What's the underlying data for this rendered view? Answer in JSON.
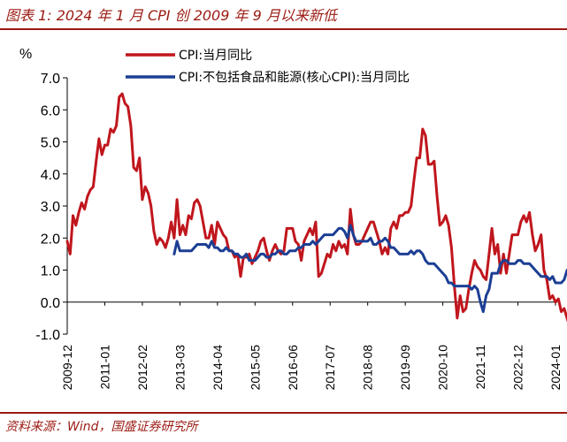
{
  "figure": {
    "title": "图表 1:  2024 年 1 月 CPI 创 2009 年 9 月以来新低",
    "source": "资料来源：Wind，国盛证券研究所"
  },
  "chart_data": {
    "type": "line",
    "unit_label": "%",
    "ylim": [
      -1.0,
      7.0
    ],
    "yticks": [
      "7.0",
      "6.0",
      "5.0",
      "4.0",
      "3.0",
      "2.0",
      "1.0",
      "0.0",
      "-1.0"
    ],
    "xticks": [
      "2009-12",
      "2011-01",
      "2012-02",
      "2013-03",
      "2014-04",
      "2015-05",
      "2016-06",
      "2017-07",
      "2018-08",
      "2019-09",
      "2020-10",
      "2021-11",
      "2022-12",
      "2024-01"
    ],
    "x_start": "2009-12",
    "x_end": "2024-01",
    "grid": false,
    "legend_position": "top-center",
    "series": [
      {
        "name": "CPI:当月同比",
        "color": "#c0161d",
        "start": "2009-12",
        "values": [
          1.9,
          1.5,
          2.7,
          2.4,
          2.8,
          3.1,
          2.9,
          3.3,
          3.5,
          3.6,
          4.4,
          5.1,
          4.6,
          4.9,
          4.9,
          5.4,
          5.3,
          5.5,
          6.4,
          6.5,
          6.2,
          6.1,
          5.5,
          4.2,
          4.1,
          4.5,
          3.2,
          3.6,
          3.4,
          3.0,
          2.2,
          1.8,
          2.0,
          1.9,
          1.7,
          2.0,
          2.5,
          2.0,
          3.2,
          2.1,
          2.4,
          2.1,
          2.7,
          2.6,
          3.1,
          3.2,
          3.0,
          2.5,
          2.0,
          2.0,
          2.4,
          1.8,
          2.5,
          2.3,
          2.1,
          2.0,
          1.6,
          1.6,
          1.4,
          1.5,
          0.8,
          1.4,
          1.4,
          1.5,
          1.2,
          1.4,
          1.6,
          1.9,
          2.0,
          1.6,
          1.3,
          1.6,
          1.8,
          1.6,
          1.5,
          1.6,
          2.3,
          2.3,
          2.3,
          1.9,
          1.8,
          1.3,
          1.9,
          2.1,
          2.3,
          2.1,
          2.5,
          0.8,
          0.9,
          1.2,
          1.5,
          1.4,
          1.8,
          1.6,
          1.9,
          1.7,
          1.8,
          1.5,
          2.9,
          2.1,
          1.8,
          1.8,
          1.9,
          2.1,
          2.3,
          2.5,
          2.5,
          2.2,
          1.9,
          1.5,
          1.7,
          1.5,
          2.3,
          2.5,
          2.3,
          2.7,
          2.7,
          2.8,
          2.8,
          3.0,
          3.8,
          4.5,
          4.5,
          5.4,
          5.2,
          4.3,
          4.3,
          4.4,
          3.3,
          2.4,
          2.5,
          2.7,
          2.4,
          1.7,
          0.5,
          -0.5,
          0.2,
          -0.3,
          -0.2,
          0.4,
          0.9,
          1.3,
          1.1,
          1.0,
          0.8,
          0.7,
          1.5,
          2.3,
          1.5,
          1.8,
          0.9,
          1.5,
          0.9,
          1.5,
          2.1,
          2.1,
          2.1,
          2.5,
          2.7,
          2.5,
          2.8,
          2.1,
          1.6,
          1.8,
          2.1,
          1.0,
          0.7,
          0.1,
          0.2,
          0.0,
          0.1,
          -0.3,
          -0.2,
          -0.5,
          -0.8
        ]
      },
      {
        "name": "CPI:不包括食品和能源(核心CPI):当月同比",
        "color": "#1c3f94",
        "start": "2013-01",
        "values": [
          1.5,
          1.9,
          1.6,
          1.6,
          1.6,
          1.6,
          1.6,
          1.7,
          1.8,
          1.8,
          1.8,
          1.8,
          1.7,
          1.9,
          1.7,
          1.7,
          1.6,
          1.6,
          1.7,
          1.6,
          1.6,
          1.5,
          1.5,
          1.4,
          1.4,
          1.5,
          1.3,
          1.3,
          1.3,
          1.4,
          1.5,
          1.5,
          1.4,
          1.4,
          1.5,
          1.5,
          1.6,
          1.6,
          1.5,
          1.5,
          1.6,
          1.6,
          1.6,
          1.7,
          1.7,
          1.8,
          1.8,
          1.8,
          1.9,
          1.8,
          1.9,
          2.0,
          2.1,
          2.1,
          2.1,
          2.1,
          2.2,
          2.3,
          2.3,
          2.2,
          2.0,
          2.4,
          2.1,
          1.9,
          1.9,
          1.9,
          1.9,
          1.9,
          2.0,
          1.8,
          1.8,
          1.9,
          1.9,
          2.0,
          1.9,
          1.7,
          1.7,
          1.6,
          1.5,
          1.5,
          1.5,
          1.5,
          1.6,
          1.5,
          1.6,
          1.6,
          1.5,
          1.3,
          1.2,
          1.2,
          1.2,
          1.1,
          1.0,
          0.9,
          0.8,
          0.6,
          0.6,
          0.5,
          0.5,
          0.5,
          0.5,
          0.5,
          0.5,
          0.4,
          0.5,
          0.4,
          0.0,
          -0.3,
          0.2,
          0.4,
          0.9,
          0.9,
          0.9,
          1.2,
          1.3,
          1.3,
          1.2,
          1.2,
          1.2,
          1.3,
          1.3,
          1.2,
          1.2,
          1.2,
          1.1,
          1.0,
          0.9,
          0.8,
          0.8,
          0.8,
          0.7,
          0.8,
          0.6,
          0.6,
          0.6,
          0.7,
          1.0,
          0.6,
          0.7,
          0.7,
          0.6,
          0.6,
          0.8,
          0.8,
          0.8,
          0.8,
          0.6,
          0.6,
          0.4
        ]
      }
    ]
  }
}
